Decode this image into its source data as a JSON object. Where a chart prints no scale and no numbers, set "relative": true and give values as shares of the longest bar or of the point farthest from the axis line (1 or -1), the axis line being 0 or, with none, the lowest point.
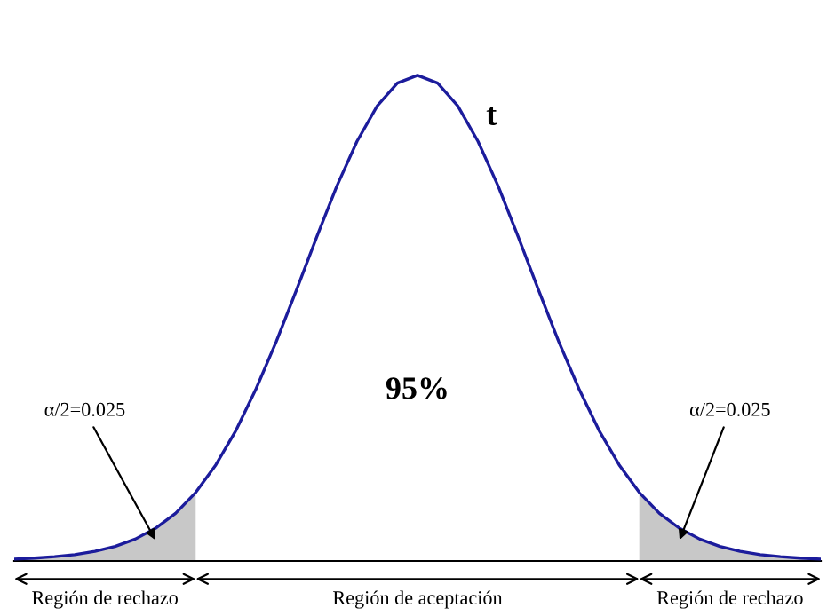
{
  "chart_data": {
    "type": "line",
    "relative": true,
    "legend": false,
    "marker": "none",
    "line_style": "solid",
    "categories": [
      null,
      null,
      null,
      null,
      null,
      null,
      null,
      null,
      null,
      null,
      null,
      null,
      null,
      null,
      null,
      null,
      null,
      null,
      null,
      null,
      null,
      null,
      null,
      null,
      null,
      null,
      null,
      null,
      null,
      null,
      null,
      null,
      null,
      null,
      null,
      null,
      null,
      null,
      null,
      null,
      null
    ],
    "series": [
      {
        "type": "area",
        "color": "#c8c8c8",
        "values": [
          0.004,
          0.006,
          0.009,
          0.013,
          0.02,
          0.03,
          0.045,
          0.067,
          0.098,
          0.141,
          null,
          null,
          null,
          null,
          null,
          null,
          null,
          null,
          null,
          null,
          null,
          null,
          null,
          null,
          null,
          null,
          null,
          null,
          null,
          null,
          null,
          null,
          null,
          null,
          null,
          null,
          null,
          null,
          null,
          null,
          null
        ]
      },
      {
        "type": "area",
        "color": "#c8c8c8",
        "values": [
          null,
          null,
          null,
          null,
          null,
          null,
          null,
          null,
          null,
          null,
          null,
          null,
          null,
          null,
          null,
          null,
          null,
          null,
          null,
          null,
          null,
          null,
          null,
          null,
          null,
          null,
          null,
          null,
          null,
          null,
          null,
          0.141,
          0.098,
          0.067,
          0.045,
          0.03,
          0.02,
          0.013,
          0.009,
          0.006,
          0.004
        ]
      },
      {
        "name": "t",
        "color": "#1c1c9c",
        "values": [
          0.004,
          0.006,
          0.009,
          0.013,
          0.02,
          0.03,
          0.045,
          0.067,
          0.098,
          0.141,
          0.198,
          0.269,
          0.355,
          0.452,
          0.558,
          0.667,
          0.772,
          0.864,
          0.937,
          0.984,
          1,
          0.984,
          0.937,
          0.864,
          0.772,
          0.667,
          0.558,
          0.452,
          0.355,
          0.269,
          0.198,
          0.141,
          0.098,
          0.067,
          0.045,
          0.03,
          0.02,
          0.013,
          0.009,
          0.006,
          0.004
        ]
      }
    ],
    "annotations": [
      "95%",
      "α/2=0.025",
      "α/2=0.025",
      "Región de rechazo",
      "Región de aceptación",
      "Región de rechazo"
    ]
  }
}
